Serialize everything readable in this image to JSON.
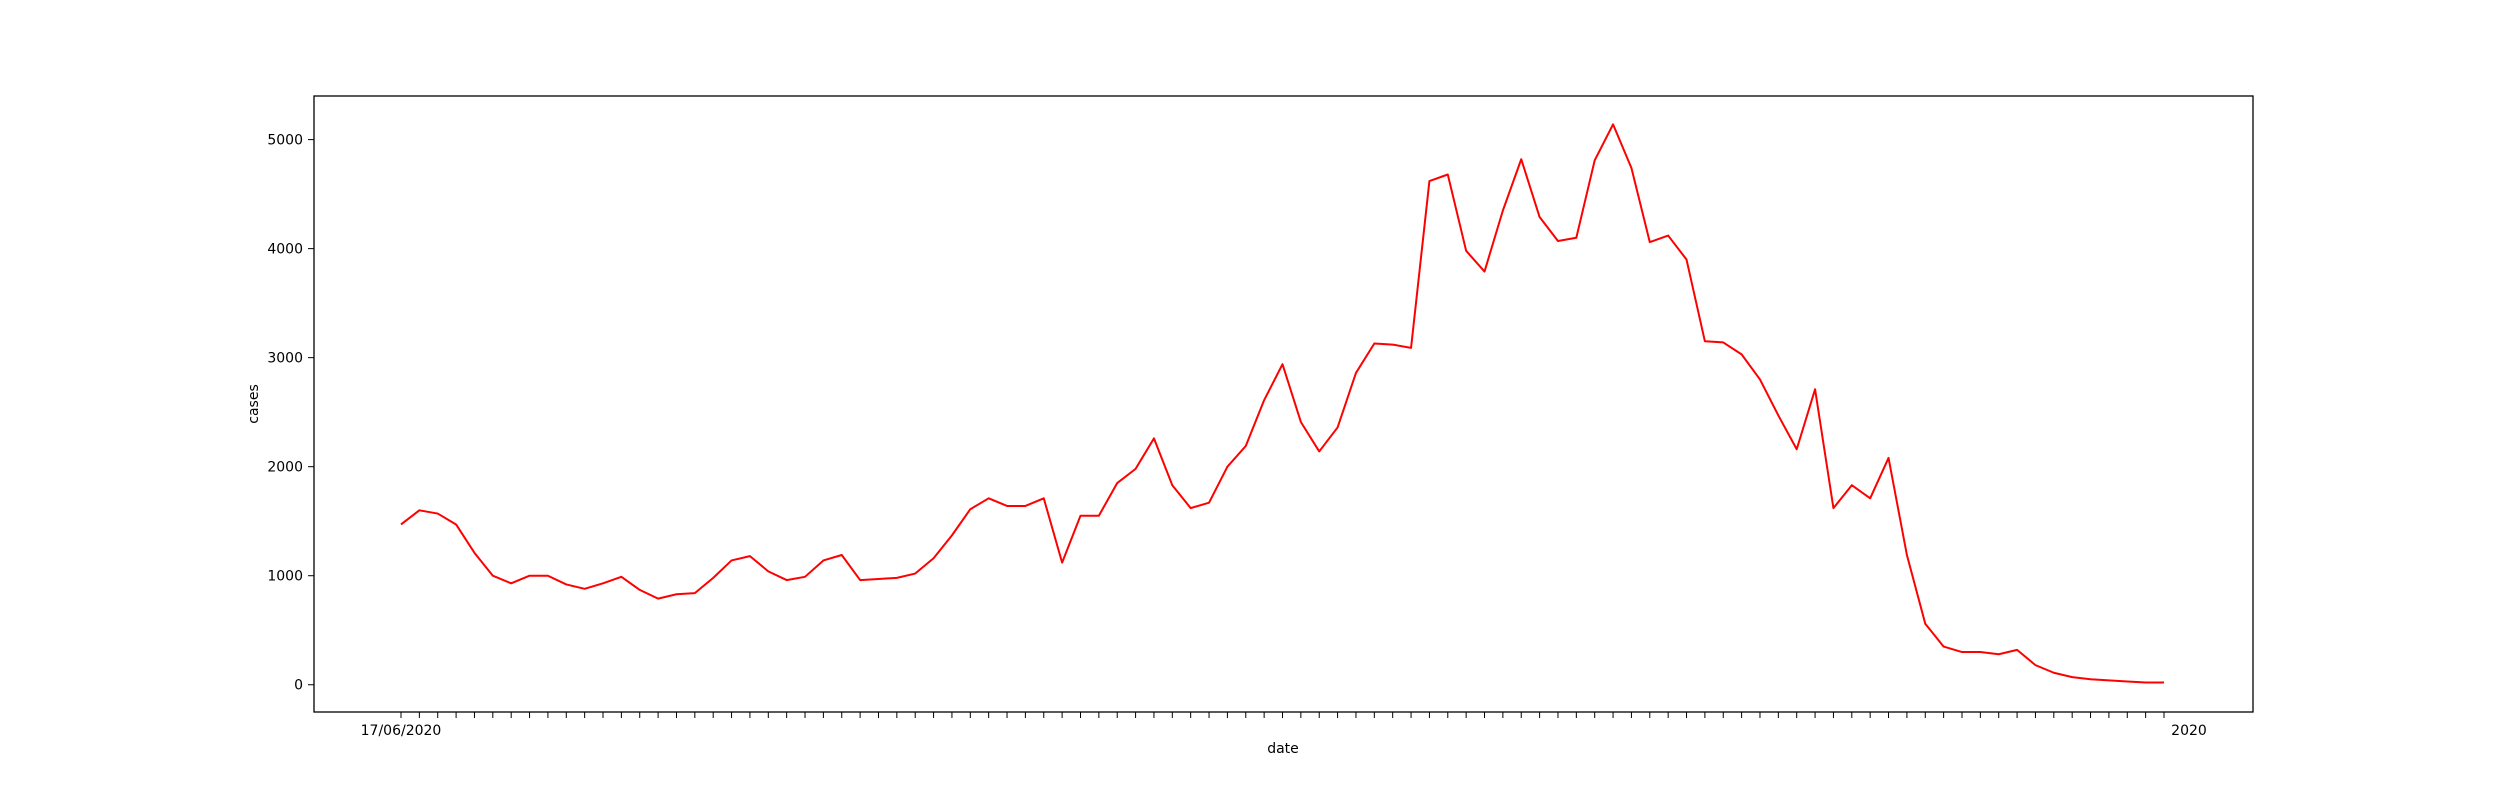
{
  "chart_data": {
    "type": "line",
    "xlabel": "date",
    "ylabel": "cases",
    "ylim": [
      -250,
      5400
    ],
    "yticks": [
      0,
      1000,
      2000,
      3000,
      4000,
      5000
    ],
    "grid": false,
    "series": [
      {
        "color": "#ff0000",
        "values": [
          1470,
          1600,
          1570,
          1470,
          1210,
          1000,
          930,
          1000,
          1000,
          920,
          880,
          930,
          990,
          870,
          790,
          830,
          840,
          980,
          1140,
          1180,
          1040,
          960,
          990,
          1140,
          1190,
          960,
          970,
          980,
          1020,
          1160,
          1370,
          1610,
          1710,
          1640,
          1640,
          1710,
          1120,
          1550,
          1550,
          1850,
          1980,
          2260,
          1830,
          1620,
          1670,
          2000,
          2190,
          2610,
          2940,
          2410,
          2140,
          2360,
          2860,
          3130,
          3120,
          3090,
          4620,
          4680,
          3980,
          3790,
          4350,
          4820,
          4290,
          4070,
          4100,
          4810,
          5140,
          4740,
          4060,
          4120,
          3900,
          3150,
          3140,
          3030,
          2800,
          2470,
          2160,
          2710,
          1620,
          1830,
          1710,
          2080,
          1190,
          560,
          350,
          300,
          300,
          280,
          320,
          180,
          110,
          70,
          50,
          40,
          30,
          20,
          20
        ]
      }
    ],
    "x_first_label": "17/06/2020",
    "x_last_label": "2020"
  }
}
